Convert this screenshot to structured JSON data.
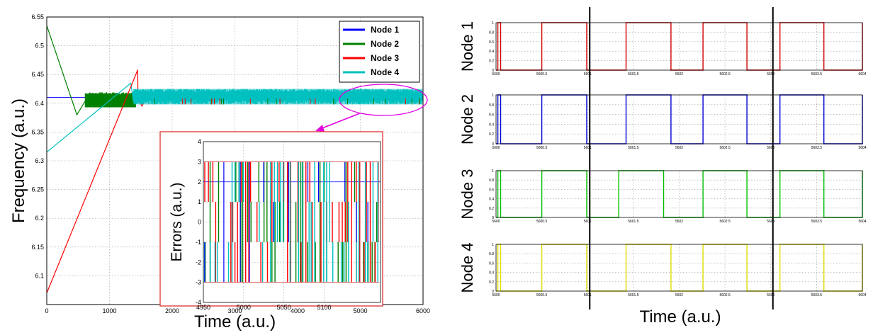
{
  "chart_data": [
    {
      "type": "line",
      "title": "",
      "xlabel": "Time (a.u.)",
      "ylabel": "Frequency (a.u.)",
      "xlim": [
        0,
        6000
      ],
      "ylim": [
        6.05,
        6.55
      ],
      "xticks": [
        "0",
        "1000",
        "2000",
        "3000",
        "4000",
        "5000",
        "6000"
      ],
      "yticks": [
        "6.1",
        "6.15",
        "6.2",
        "6.25",
        "6.3",
        "6.35",
        "6.4",
        "6.45",
        "6.5",
        "6.55"
      ],
      "grid": true,
      "legend_position": "top-right",
      "series": [
        {
          "name": "Node 1",
          "color": "#0000ff",
          "x": [
            0,
            1500,
            6000
          ],
          "y": [
            6.41,
            6.41,
            6.41
          ]
        },
        {
          "name": "Node 2",
          "color": "#008000",
          "x": [
            0,
            480,
            620,
            1400,
            6000
          ],
          "y": [
            6.535,
            6.38,
            6.405,
            6.405,
            6.405
          ]
        },
        {
          "name": "Node 3",
          "color": "#ff0000",
          "x": [
            0,
            1450,
            1520,
            6000
          ],
          "y": [
            6.07,
            6.458,
            6.405,
            6.405
          ]
        },
        {
          "name": "Node 4",
          "color": "#00c0c0",
          "x": [
            0,
            1340,
            1420,
            6000
          ],
          "y": [
            6.315,
            6.435,
            6.41,
            6.41
          ]
        }
      ]
    },
    {
      "type": "line",
      "title": "",
      "xlabel": "",
      "ylabel": "Errors (a.u.)",
      "xlim": [
        4950,
        5170
      ],
      "ylim": [
        -4,
        4
      ],
      "xticks": [
        "4950",
        "5000",
        "5050",
        "5100"
      ],
      "yticks": [
        "-4",
        "-3",
        "-2",
        "-1",
        "0",
        "1",
        "2",
        "3",
        "4"
      ],
      "grid": true,
      "series_levels": [
        -3,
        -1,
        1,
        3
      ],
      "series": [
        {
          "name": "",
          "color": "#0000ff",
          "level": 2
        },
        {
          "name": "",
          "color": "#008000"
        },
        {
          "name": "",
          "color": "#ff0000"
        },
        {
          "name": "",
          "color": "#00c0c0"
        }
      ]
    },
    {
      "type": "line",
      "title": "",
      "xlabel": "Time (a.u.)",
      "ylabel": "",
      "xlim": [
        5600,
        5604
      ],
      "ylim": [
        0,
        1
      ],
      "xticks": [
        "5600",
        "5600.5",
        "5601",
        "5601.5",
        "5602",
        "5602.5",
        "5603",
        "5603.5",
        "5604"
      ],
      "yticks": [
        "0",
        "0.2",
        "0.4",
        "0.6",
        "0.8",
        "1"
      ],
      "grid": true,
      "markers_x": [
        5601,
        5603
      ],
      "subplots": [
        {
          "name": "Node 1",
          "color": "#d00000",
          "high_intervals": [
            [
              5600.02,
              5600.05
            ],
            [
              5600.5,
              5600.99
            ],
            [
              5601.42,
              5601.91
            ],
            [
              5602.26,
              5602.74
            ],
            [
              5603.1,
              5603.58
            ]
          ]
        },
        {
          "name": "Node 2",
          "color": "#0000d0",
          "high_intervals": [
            [
              5600.02,
              5600.05
            ],
            [
              5600.5,
              5600.99
            ],
            [
              5601.42,
              5601.91
            ],
            [
              5602.26,
              5602.74
            ],
            [
              5603.1,
              5603.58
            ],
            [
              5604.0,
              5604.0
            ]
          ]
        },
        {
          "name": "Node 3",
          "color": "#00c000",
          "high_intervals": [
            [
              5600.02,
              5600.05
            ],
            [
              5600.5,
              5600.99
            ],
            [
              5601.34,
              5601.83
            ],
            [
              5602.26,
              5602.74
            ],
            [
              5603.1,
              5603.58
            ]
          ]
        },
        {
          "name": "Node 4",
          "color": "#dddd00",
          "high_intervals": [
            [
              5600.02,
              5600.05
            ],
            [
              5600.5,
              5600.99
            ],
            [
              5601.42,
              5601.91
            ],
            [
              5602.26,
              5602.74
            ],
            [
              5603.1,
              5603.58
            ]
          ]
        }
      ]
    }
  ]
}
